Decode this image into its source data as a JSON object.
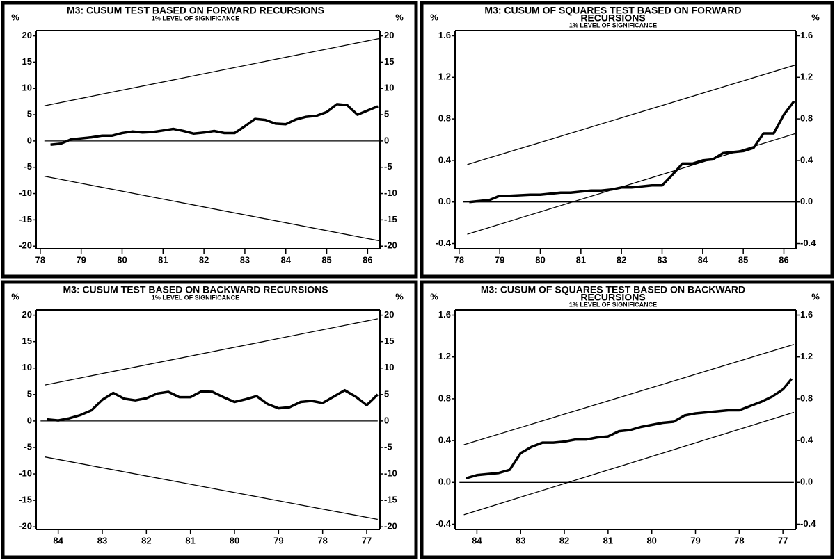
{
  "chart_data": [
    {
      "type": "line",
      "title": [
        "M3: CUSUM TEST BASED ON FORWARD RECURSIONS"
      ],
      "subtitle": "1% LEVEL OF SIGNIFICANCE",
      "ylabel": "%",
      "y2label": "%",
      "xlim": [
        77.9,
        86.3
      ],
      "xticks": [
        78,
        79,
        80,
        81,
        82,
        83,
        84,
        85,
        86
      ],
      "ylim": [
        -20.5,
        21
      ],
      "yticks": [
        -20,
        -15,
        -10,
        -5,
        0,
        5,
        10,
        15,
        20
      ],
      "series": [
        {
          "color": "#000",
          "x": [
            78.25,
            78.5,
            78.75,
            79,
            79.25,
            79.5,
            79.75,
            80,
            80.25,
            80.5,
            80.75,
            81,
            81.25,
            81.5,
            81.75,
            82,
            82.25,
            82.5,
            82.75,
            83,
            83.25,
            83.5,
            83.75,
            84,
            84.25,
            84.5,
            84.75,
            85,
            85.25,
            85.5,
            85.75,
            86,
            86.25
          ],
          "values": [
            -0.7,
            -0.5,
            0.3,
            0.5,
            0.7,
            1.0,
            1.0,
            1.5,
            1.8,
            1.6,
            1.7,
            2.0,
            2.3,
            1.9,
            1.4,
            1.6,
            1.9,
            1.5,
            1.5,
            2.8,
            4.2,
            4.0,
            3.3,
            3.2,
            4.1,
            4.6,
            4.8,
            5.5,
            7.0,
            6.8,
            5.0,
            5.8,
            6.6
          ]
        },
        {
          "color": "#000",
          "x": [
            78.1,
            86.3
          ],
          "values": [
            6.7,
            19.5
          ]
        },
        {
          "color": "#000",
          "x": [
            78.1,
            86.3
          ],
          "values": [
            -6.7,
            -19.0
          ]
        },
        {
          "color": "#000",
          "x": [
            78.1,
            86.3
          ],
          "values": [
            0,
            0
          ]
        }
      ]
    },
    {
      "type": "line",
      "title": [
        "M3: CUSUM OF SQUARES TEST BASED ON FORWARD",
        "RECURSIONS"
      ],
      "subtitle": "1% LEVEL OF SIGNIFICANCE",
      "ylabel": "%",
      "y2label": "%",
      "xlim": [
        77.9,
        86.3
      ],
      "xticks": [
        78,
        79,
        80,
        81,
        82,
        83,
        84,
        85,
        86
      ],
      "ylim": [
        -0.45,
        1.65
      ],
      "yticks": [
        -0.4,
        {
          "value": 0,
          "label": "0.0"
        },
        0.4,
        0.8,
        1.2,
        1.6
      ],
      "series": [
        {
          "color": "#000",
          "x": [
            78.25,
            78.5,
            78.75,
            79,
            79.25,
            79.5,
            79.75,
            80,
            80.25,
            80.5,
            80.75,
            81,
            81.25,
            81.5,
            81.75,
            82,
            82.25,
            82.5,
            82.75,
            83,
            83.25,
            83.5,
            83.75,
            84,
            84.25,
            84.5,
            84.75,
            85,
            85.25,
            85.5,
            85.75,
            86,
            86.25
          ],
          "values": [
            0.0,
            0.01,
            0.02,
            0.06,
            0.06,
            0.065,
            0.07,
            0.07,
            0.08,
            0.09,
            0.09,
            0.1,
            0.11,
            0.11,
            0.12,
            0.14,
            0.14,
            0.15,
            0.16,
            0.16,
            0.26,
            0.37,
            0.37,
            0.4,
            0.41,
            0.47,
            0.48,
            0.49,
            0.52,
            0.66,
            0.66,
            0.84,
            0.97
          ]
        },
        {
          "color": "#000",
          "x": [
            78.2,
            86.3
          ],
          "values": [
            0.36,
            1.32
          ]
        },
        {
          "color": "#000",
          "x": [
            78.2,
            86.3
          ],
          "values": [
            -0.31,
            0.66
          ]
        },
        {
          "color": "#000",
          "x": [
            78.1,
            86.3
          ],
          "values": [
            0,
            0
          ]
        }
      ]
    },
    {
      "type": "line",
      "title": [
        "M3: CUSUM TEST BASED ON BACKWARD RECURSIONS"
      ],
      "subtitle": "1% LEVEL OF SIGNIFICANCE",
      "ylabel": "%",
      "y2label": "%",
      "xlim": [
        84.5,
        76.7
      ],
      "xticks": [
        84,
        83,
        82,
        81,
        80,
        79,
        78,
        77
      ],
      "ylim": [
        -20.5,
        21
      ],
      "yticks": [
        -20,
        -15,
        -10,
        -5,
        0,
        5,
        10,
        15,
        20
      ],
      "series": [
        {
          "color": "#000",
          "x": [
            84.25,
            84,
            83.75,
            83.5,
            83.25,
            83,
            82.75,
            82.5,
            82.25,
            82,
            81.75,
            81.5,
            81.25,
            81,
            80.75,
            80.5,
            80.25,
            80,
            79.75,
            79.5,
            79.25,
            79,
            78.75,
            78.5,
            78.25,
            78,
            77.75,
            77.5,
            77.25,
            77,
            76.75
          ],
          "values": [
            0.3,
            0.1,
            0.5,
            1.1,
            2.0,
            4.0,
            5.3,
            4.2,
            3.9,
            4.3,
            5.2,
            5.5,
            4.5,
            4.5,
            5.6,
            5.5,
            4.5,
            3.6,
            4.1,
            4.7,
            3.2,
            2.4,
            2.6,
            3.6,
            3.8,
            3.4,
            4.6,
            5.8,
            4.6,
            3.0,
            5.0
          ]
        },
        {
          "color": "#000",
          "x": [
            84.3,
            76.75
          ],
          "values": [
            6.8,
            19.3
          ]
        },
        {
          "color": "#000",
          "x": [
            84.3,
            76.75
          ],
          "values": [
            -6.8,
            -18.6
          ]
        },
        {
          "color": "#000",
          "x": [
            84.4,
            76.75
          ],
          "values": [
            0,
            0
          ]
        }
      ]
    },
    {
      "type": "line",
      "title": [
        "M3: CUSUM OF SQUARES TEST BASED ON BACKWARD",
        "RECURSIONS"
      ],
      "subtitle": "1% LEVEL OF SIGNIFICANCE",
      "ylabel": "%",
      "y2label": "%",
      "xlim": [
        84.5,
        76.7
      ],
      "xticks": [
        84,
        83,
        82,
        81,
        80,
        79,
        78,
        77
      ],
      "ylim": [
        -0.45,
        1.65
      ],
      "yticks": [
        -0.4,
        {
          "value": 0,
          "label": "0.0"
        },
        0.4,
        0.8,
        1.2,
        1.6
      ],
      "series": [
        {
          "color": "#000",
          "x": [
            84.25,
            84,
            83.75,
            83.5,
            83.25,
            83,
            82.75,
            82.5,
            82.25,
            82,
            81.75,
            81.5,
            81.25,
            81,
            80.75,
            80.5,
            80.25,
            80,
            79.75,
            79.5,
            79.25,
            79,
            78.75,
            78.5,
            78.25,
            78,
            77.75,
            77.5,
            77.25,
            77,
            76.8
          ],
          "values": [
            0.04,
            0.07,
            0.08,
            0.09,
            0.12,
            0.28,
            0.34,
            0.38,
            0.38,
            0.39,
            0.41,
            0.41,
            0.43,
            0.44,
            0.49,
            0.5,
            0.53,
            0.55,
            0.57,
            0.58,
            0.64,
            0.66,
            0.67,
            0.68,
            0.69,
            0.69,
            0.73,
            0.77,
            0.82,
            0.89,
            0.99
          ]
        },
        {
          "color": "#000",
          "x": [
            84.3,
            76.75
          ],
          "values": [
            0.36,
            1.32
          ]
        },
        {
          "color": "#000",
          "x": [
            84.3,
            76.75
          ],
          "values": [
            -0.31,
            0.67
          ]
        },
        {
          "color": "#000",
          "x": [
            84.4,
            76.75
          ],
          "values": [
            0,
            0
          ]
        }
      ]
    }
  ]
}
